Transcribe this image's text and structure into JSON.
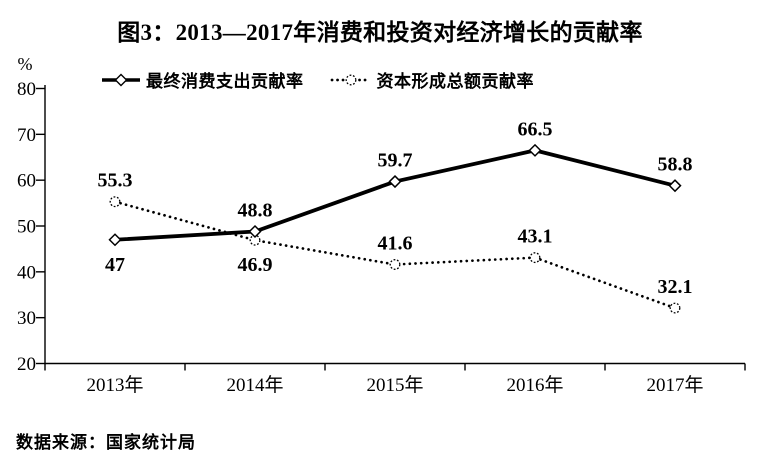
{
  "title": "图3：2013—2017年消费和投资对经济增长的贡献率",
  "source_note": "数据来源：国家统计局",
  "chart_data": {
    "type": "line",
    "title": "图3：2013—2017年消费和投资对经济增长的贡献率",
    "unit_label": "%",
    "categories": [
      "2013年",
      "2014年",
      "2015年",
      "2016年",
      "2017年"
    ],
    "series": [
      {
        "name": "最终消费支出贡献率",
        "line_style": "solid",
        "marker": "diamond",
        "values": [
          47,
          48.8,
          59.7,
          66.5,
          58.8
        ],
        "value_labels": [
          "47",
          "48.8",
          "59.7",
          "66.5",
          "58.8"
        ],
        "label_positions": [
          "below",
          "above",
          "above",
          "above",
          "above"
        ]
      },
      {
        "name": "资本形成总额贡献率",
        "line_style": "dotted",
        "marker": "circle",
        "values": [
          55.3,
          46.9,
          41.6,
          43.1,
          32.1
        ],
        "value_labels": [
          "55.3",
          "46.9",
          "41.6",
          "43.1",
          "32.1"
        ],
        "label_positions": [
          "above",
          "below",
          "above",
          "above",
          "above"
        ]
      }
    ],
    "ylim": [
      20,
      80
    ],
    "yticks": [
      20,
      30,
      40,
      50,
      60,
      70,
      80
    ],
    "grid": false,
    "legend_position": "top",
    "colors": {
      "line": "#000000",
      "background": "#ffffff",
      "text": "#000000"
    }
  }
}
